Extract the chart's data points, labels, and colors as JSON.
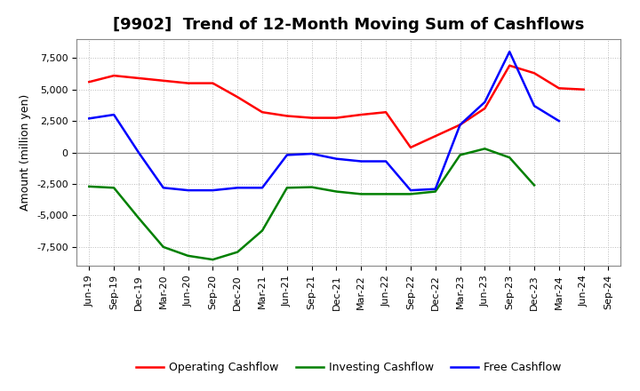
{
  "title": "[9902]  Trend of 12-Month Moving Sum of Cashflows",
  "ylabel": "Amount (million yen)",
  "x_labels": [
    "Jun-19",
    "Sep-19",
    "Dec-19",
    "Mar-20",
    "Jun-20",
    "Sep-20",
    "Dec-20",
    "Mar-21",
    "Jun-21",
    "Sep-21",
    "Dec-21",
    "Mar-22",
    "Jun-22",
    "Sep-22",
    "Dec-22",
    "Mar-23",
    "Jun-23",
    "Sep-23",
    "Dec-23",
    "Mar-24",
    "Jun-24",
    "Sep-24"
  ],
  "operating": [
    5600,
    6100,
    5900,
    5700,
    5500,
    5500,
    4400,
    3200,
    2900,
    2750,
    2750,
    3000,
    3200,
    400,
    1300,
    2200,
    3500,
    6900,
    6300,
    5100,
    5000,
    null
  ],
  "investing": [
    -2700,
    -2800,
    -5200,
    -7500,
    -8200,
    -8500,
    -7900,
    -6200,
    -2800,
    -2750,
    -3100,
    -3300,
    -3300,
    -3300,
    -3100,
    -200,
    300,
    -400,
    -2600,
    null,
    null,
    null
  ],
  "free": [
    2700,
    3000,
    0,
    -2800,
    -3000,
    -3000,
    -2800,
    -2800,
    -200,
    -100,
    -500,
    -700,
    -700,
    -3000,
    -2900,
    2200,
    4000,
    8000,
    3700,
    2500,
    null,
    null
  ],
  "ylim": [
    -9000,
    9000
  ],
  "yticks": [
    -7500,
    -5000,
    -2500,
    0,
    2500,
    5000,
    7500
  ],
  "operating_color": "#ff0000",
  "investing_color": "#008000",
  "free_color": "#0000ff",
  "bg_color": "#ffffff",
  "plot_bg_color": "#ffffff",
  "grid_color": "#bbbbbb",
  "title_fontsize": 13,
  "axis_fontsize": 9,
  "tick_fontsize": 8,
  "legend_fontsize": 9,
  "linewidth": 1.8
}
